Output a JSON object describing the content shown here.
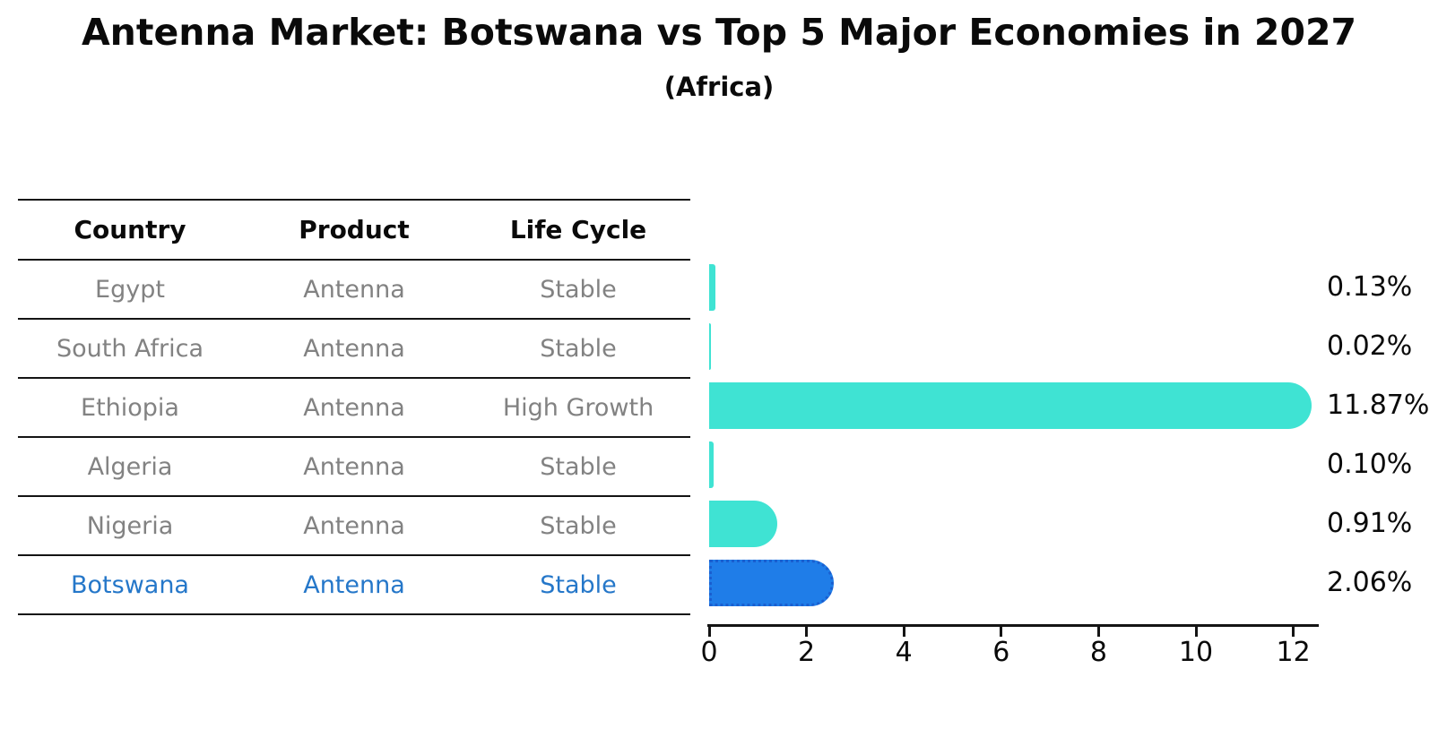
{
  "title": "Antenna Market: Botswana vs Top 5 Major Economies in 2027",
  "subtitle": "(Africa)",
  "table": {
    "headers": [
      "Country",
      "Product",
      "Life Cycle"
    ],
    "rows": [
      {
        "country": "Egypt",
        "product": "Antenna",
        "life_cycle": "Stable"
      },
      {
        "country": "South Africa",
        "product": "Antenna",
        "life_cycle": "Stable"
      },
      {
        "country": "Ethiopia",
        "product": "Antenna",
        "life_cycle": "High Growth"
      },
      {
        "country": "Algeria",
        "product": "Antenna",
        "life_cycle": "Stable"
      },
      {
        "country": "Nigeria",
        "product": "Antenna",
        "life_cycle": "Stable"
      },
      {
        "country": "Botswana",
        "product": "Antenna",
        "life_cycle": "Stable"
      }
    ],
    "highlighted_row": "Botswana"
  },
  "chart_data": {
    "type": "bar",
    "orientation": "horizontal",
    "title": "Antenna Market: Botswana vs Top 5 Major Economies in 2027",
    "subtitle": "(Africa)",
    "categories": [
      "Egypt",
      "South Africa",
      "Ethiopia",
      "Algeria",
      "Nigeria",
      "Botswana"
    ],
    "values": [
      0.13,
      0.02,
      11.87,
      0.1,
      0.91,
      2.06
    ],
    "value_labels": [
      "0.13%",
      "0.02%",
      "11.87%",
      "0.10%",
      "0.91%",
      "2.06%"
    ],
    "x_ticks": [
      0,
      2,
      4,
      6,
      8,
      10,
      12
    ],
    "xlim": [
      0,
      12.5
    ],
    "xlabel": "",
    "ylabel": "",
    "grid": false,
    "legend": "none",
    "bar_color": "#3fe3d3",
    "highlight_index": 5,
    "highlight_bar_color": "#1f7de8",
    "highlight_border_color": "#1a5fd0",
    "highlight_text_color": "#2577c9",
    "table_text_color": "#828282"
  }
}
